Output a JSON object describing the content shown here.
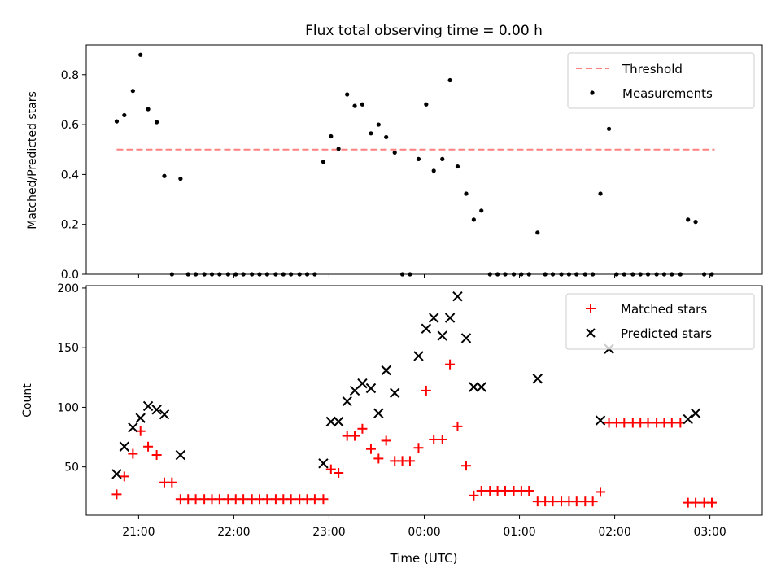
{
  "figure": {
    "title": "Flux total observing time = 0.00 h",
    "xlabel": "Time (UTC)",
    "x_ticks": [
      "21:00",
      "22:00",
      "23:00",
      "00:00",
      "01:00",
      "02:00",
      "03:00"
    ],
    "x_tick_hours": [
      21,
      22,
      23,
      24,
      25,
      26,
      27
    ]
  },
  "chart_data": [
    {
      "type": "scatter",
      "title": "Flux total observing time = 0.00 h",
      "xlabel": "",
      "ylabel": "Matched/Predicted stars",
      "xlim": [
        20.45,
        27.55
      ],
      "ylim": [
        0,
        0.92
      ],
      "y_ticks": [
        "0.0",
        "0.2",
        "0.4",
        "0.6",
        "0.8"
      ],
      "y_tick_values": [
        0,
        0.2,
        0.4,
        0.6,
        0.8
      ],
      "grid": false,
      "legend": "top-right",
      "threshold": {
        "name": "Threshold",
        "value": 0.5,
        "x_range": [
          20.77,
          27.05
        ],
        "color": "#ff8080"
      },
      "series": [
        {
          "name": "Measurements",
          "color": "#000000",
          "points": [
            [
              20.77,
              0.613
            ],
            [
              20.85,
              0.638
            ],
            [
              20.94,
              0.735
            ],
            [
              21.02,
              0.88
            ],
            [
              21.1,
              0.662
            ],
            [
              21.19,
              0.61
            ],
            [
              21.27,
              0.394
            ],
            [
              21.35,
              0.0
            ],
            [
              21.44,
              0.383
            ],
            [
              21.52,
              0.0
            ],
            [
              21.6,
              0.0
            ],
            [
              21.69,
              0.0
            ],
            [
              21.77,
              0.0
            ],
            [
              21.85,
              0.0
            ],
            [
              21.94,
              0.0
            ],
            [
              22.02,
              0.0
            ],
            [
              22.1,
              0.0
            ],
            [
              22.19,
              0.0
            ],
            [
              22.27,
              0.0
            ],
            [
              22.35,
              0.0
            ],
            [
              22.44,
              0.0
            ],
            [
              22.52,
              0.0
            ],
            [
              22.6,
              0.0
            ],
            [
              22.69,
              0.0
            ],
            [
              22.77,
              0.0
            ],
            [
              22.85,
              0.0
            ],
            [
              22.94,
              0.451
            ],
            [
              23.02,
              0.553
            ],
            [
              23.1,
              0.503
            ],
            [
              23.19,
              0.721
            ],
            [
              23.27,
              0.675
            ],
            [
              23.35,
              0.681
            ],
            [
              23.44,
              0.565
            ],
            [
              23.52,
              0.6
            ],
            [
              23.6,
              0.55
            ],
            [
              23.69,
              0.488
            ],
            [
              23.77,
              0.0
            ],
            [
              23.85,
              0.0
            ],
            [
              23.94,
              0.462
            ],
            [
              24.02,
              0.681
            ],
            [
              24.1,
              0.415
            ],
            [
              24.19,
              0.462
            ],
            [
              24.27,
              0.778
            ],
            [
              24.35,
              0.432
            ],
            [
              24.44,
              0.323
            ],
            [
              24.52,
              0.219
            ],
            [
              24.6,
              0.255
            ],
            [
              24.69,
              0.0
            ],
            [
              24.77,
              0.0
            ],
            [
              24.85,
              0.0
            ],
            [
              24.94,
              0.0
            ],
            [
              25.02,
              0.0
            ],
            [
              25.1,
              0.0
            ],
            [
              25.19,
              0.167
            ],
            [
              25.27,
              0.0
            ],
            [
              25.35,
              0.0
            ],
            [
              25.44,
              0.0
            ],
            [
              25.52,
              0.0
            ],
            [
              25.6,
              0.0
            ],
            [
              25.69,
              0.0
            ],
            [
              25.77,
              0.0
            ],
            [
              25.85,
              0.323
            ],
            [
              25.94,
              0.583
            ],
            [
              26.02,
              0.0
            ],
            [
              26.1,
              0.0
            ],
            [
              26.19,
              0.0
            ],
            [
              26.27,
              0.0
            ],
            [
              26.35,
              0.0
            ],
            [
              26.44,
              0.0
            ],
            [
              26.52,
              0.0
            ],
            [
              26.6,
              0.0
            ],
            [
              26.69,
              0.0
            ],
            [
              26.77,
              0.219
            ],
            [
              26.85,
              0.21
            ],
            [
              26.94,
              0.0
            ],
            [
              27.02,
              0.0
            ]
          ]
        }
      ]
    },
    {
      "type": "scatter",
      "xlabel": "Time (UTC)",
      "ylabel": "Count",
      "xlim": [
        20.45,
        27.55
      ],
      "ylim": [
        9.5,
        202
      ],
      "y_ticks": [
        "50",
        "100",
        "150",
        "200"
      ],
      "y_tick_values": [
        50,
        100,
        150,
        200
      ],
      "grid": false,
      "legend": "top-right",
      "series": [
        {
          "name": "Matched stars",
          "marker": "plus",
          "color": "#ff0000",
          "points": [
            [
              20.77,
              27
            ],
            [
              20.85,
              42
            ],
            [
              20.94,
              61
            ],
            [
              21.02,
              80
            ],
            [
              21.1,
              67
            ],
            [
              21.19,
              60
            ],
            [
              21.27,
              37
            ],
            [
              21.35,
              37
            ],
            [
              21.44,
              23
            ],
            [
              21.52,
              23
            ],
            [
              21.6,
              23
            ],
            [
              21.69,
              23
            ],
            [
              21.77,
              23
            ],
            [
              21.85,
              23
            ],
            [
              21.94,
              23
            ],
            [
              22.02,
              23
            ],
            [
              22.1,
              23
            ],
            [
              22.19,
              23
            ],
            [
              22.27,
              23
            ],
            [
              22.35,
              23
            ],
            [
              22.44,
              23
            ],
            [
              22.52,
              23
            ],
            [
              22.6,
              23
            ],
            [
              22.69,
              23
            ],
            [
              22.77,
              23
            ],
            [
              22.85,
              23
            ],
            [
              22.94,
              23
            ],
            [
              23.02,
              48
            ],
            [
              23.1,
              45
            ],
            [
              23.19,
              76
            ],
            [
              23.27,
              76
            ],
            [
              23.35,
              82
            ],
            [
              23.44,
              65
            ],
            [
              23.52,
              57
            ],
            [
              23.6,
              72
            ],
            [
              23.69,
              55
            ],
            [
              23.77,
              55
            ],
            [
              23.85,
              55
            ],
            [
              23.94,
              66
            ],
            [
              24.02,
              114
            ],
            [
              24.1,
              73
            ],
            [
              24.19,
              73
            ],
            [
              24.27,
              136
            ],
            [
              24.35,
              84
            ],
            [
              24.44,
              51
            ],
            [
              24.52,
              26
            ],
            [
              24.6,
              30
            ],
            [
              24.69,
              30
            ],
            [
              24.77,
              30
            ],
            [
              24.85,
              30
            ],
            [
              24.94,
              30
            ],
            [
              25.02,
              30
            ],
            [
              25.1,
              30
            ],
            [
              25.19,
              21
            ],
            [
              25.27,
              21
            ],
            [
              25.35,
              21
            ],
            [
              25.44,
              21
            ],
            [
              25.52,
              21
            ],
            [
              25.6,
              21
            ],
            [
              25.69,
              21
            ],
            [
              25.77,
              21
            ],
            [
              25.85,
              29
            ],
            [
              25.94,
              87
            ],
            [
              26.02,
              87
            ],
            [
              26.1,
              87
            ],
            [
              26.19,
              87
            ],
            [
              26.27,
              87
            ],
            [
              26.35,
              87
            ],
            [
              26.44,
              87
            ],
            [
              26.52,
              87
            ],
            [
              26.6,
              87
            ],
            [
              26.69,
              87
            ],
            [
              26.77,
              20
            ],
            [
              26.85,
              20
            ],
            [
              26.94,
              20
            ],
            [
              27.02,
              20
            ]
          ]
        },
        {
          "name": "Predicted stars",
          "marker": "x",
          "color": "#000000",
          "points": [
            [
              20.77,
              44
            ],
            [
              20.85,
              67
            ],
            [
              20.94,
              83
            ],
            [
              21.02,
              91
            ],
            [
              21.1,
              101
            ],
            [
              21.19,
              98
            ],
            [
              21.27,
              94
            ],
            [
              21.44,
              60
            ],
            [
              22.94,
              53
            ],
            [
              23.02,
              88
            ],
            [
              23.1,
              88
            ],
            [
              23.19,
              105
            ],
            [
              23.27,
              114
            ],
            [
              23.35,
              120
            ],
            [
              23.44,
              116
            ],
            [
              23.52,
              95
            ],
            [
              23.6,
              131
            ],
            [
              23.69,
              112
            ],
            [
              23.94,
              143
            ],
            [
              24.02,
              166
            ],
            [
              24.1,
              175
            ],
            [
              24.19,
              160
            ],
            [
              24.27,
              175
            ],
            [
              24.35,
              193
            ],
            [
              24.44,
              158
            ],
            [
              24.52,
              117
            ],
            [
              24.6,
              117
            ],
            [
              25.19,
              124
            ],
            [
              25.85,
              89
            ],
            [
              25.94,
              149
            ],
            [
              26.77,
              90
            ],
            [
              26.85,
              95
            ]
          ]
        }
      ]
    }
  ]
}
